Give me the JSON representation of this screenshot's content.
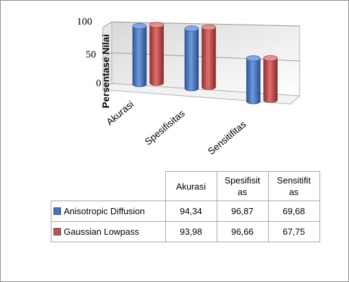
{
  "chart_data": {
    "type": "bar",
    "style": "3d-cylinder",
    "ylabel": "Persentase Nilai",
    "yticks": [
      "0",
      "50",
      "100"
    ],
    "ylim": [
      0,
      100
    ],
    "categories": [
      "Akurasi",
      "Spesifisitas",
      "Sensitifitas"
    ],
    "series": [
      {
        "name": "Anisotropic Diffusion",
        "color": "#4472c4",
        "values": [
          94.34,
          96.87,
          69.68
        ],
        "labels": [
          "94,34",
          "96,87",
          "69,68"
        ]
      },
      {
        "name": "Gaussian Lowpass",
        "color": "#c0504d",
        "values": [
          93.98,
          96.66,
          67.75
        ],
        "labels": [
          "93,98",
          "96,66",
          "67,75"
        ]
      }
    ],
    "grid": true,
    "legend": "data-table"
  },
  "table": {
    "headers": [
      "Akurasi",
      "Spesifisit\nas",
      "Sensitifit\nas"
    ]
  }
}
